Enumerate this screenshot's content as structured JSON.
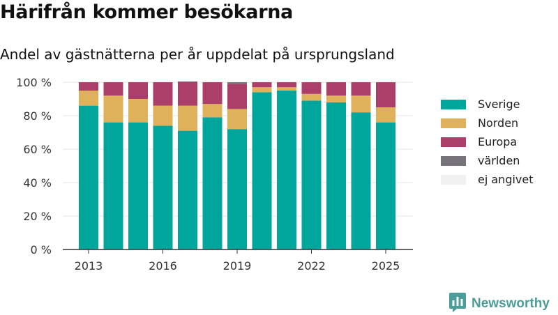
{
  "header": {
    "title": "Härifrån kommer besökarna",
    "subtitle": "Andel av gästnätterna per år uppdelat på ursprungsland"
  },
  "brand": {
    "name": "Newsworthy",
    "icon": "newsworthy-logo-icon"
  },
  "chart_data": {
    "type": "bar",
    "stacked": true,
    "x_tick_labels": [
      "2013",
      "2016",
      "2019",
      "2022",
      "2025"
    ],
    "y_tick_labels": [
      "0 %",
      "20 %",
      "40 %",
      "60 %",
      "80 %",
      "100 %"
    ],
    "ylim": [
      0,
      100
    ],
    "grid": true,
    "legend_position": "right",
    "categories": [
      "2013",
      "2014",
      "2015",
      "2016",
      "2017",
      "2018",
      "2019",
      "2020",
      "2021",
      "2022",
      "2023",
      "2024",
      "2025"
    ],
    "series": [
      {
        "name": "Sverige",
        "color": "#00a59b",
        "values": [
          86,
          76,
          76,
          74,
          71,
          79,
          72,
          94,
          95,
          89,
          88,
          82,
          76
        ]
      },
      {
        "name": "Norden",
        "color": "#e0b15b",
        "values": [
          9,
          16,
          14,
          12,
          15,
          8,
          12,
          3,
          2,
          4,
          4,
          10,
          9
        ]
      },
      {
        "name": "Europa",
        "color": "#ab3f69",
        "values": [
          5,
          8,
          10,
          14,
          14,
          13,
          15,
          3,
          3,
          7,
          8,
          8,
          15
        ]
      },
      {
        "name": "världen",
        "color": "#76737a",
        "values": [
          0,
          0,
          0,
          0,
          0.5,
          0,
          1,
          0,
          0,
          0,
          0,
          0,
          0
        ]
      },
      {
        "name": "ej angivet",
        "color": "#f1f1f1",
        "values": [
          0,
          0,
          0,
          0,
          0,
          0,
          0,
          0,
          0,
          0,
          0,
          0,
          0
        ]
      }
    ]
  }
}
